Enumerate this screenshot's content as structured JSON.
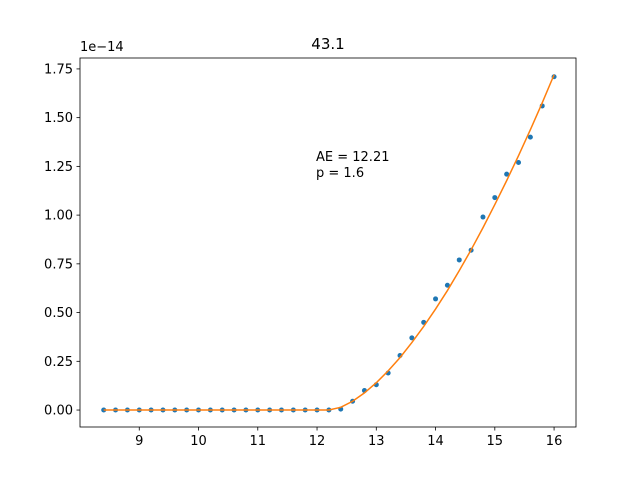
{
  "chart_data": {
    "type": "line",
    "title": "43.1",
    "y_offset_text": "1e−14",
    "annotations": [
      "AE = 12.21",
      "p = 1.6"
    ],
    "x": [
      8.4,
      8.6,
      8.8,
      9.0,
      9.2,
      9.4,
      9.6,
      9.8,
      10.0,
      10.2,
      10.4,
      10.6,
      10.8,
      11.0,
      11.2,
      11.4,
      11.6,
      11.8,
      12.0,
      12.2,
      12.4,
      12.6,
      12.8,
      13.0,
      13.2,
      13.4,
      13.6,
      13.8,
      14.0,
      14.2,
      14.4,
      14.6,
      14.8,
      15.0,
      15.2,
      15.4,
      15.6,
      15.8,
      16.0
    ],
    "series": [
      {
        "type": "scatter",
        "color": "#1f77b4",
        "values": [
          0,
          0,
          0,
          0,
          0,
          0,
          0,
          0,
          0,
          0,
          0,
          0,
          0,
          0,
          0,
          0,
          0,
          0,
          0,
          0,
          0.005,
          0.045,
          0.1,
          0.13,
          0.19,
          0.28,
          0.37,
          0.45,
          0.57,
          0.64,
          0.77,
          0.82,
          0.99,
          1.09,
          1.21,
          1.27,
          1.4,
          1.56,
          1.71
        ]
      },
      {
        "type": "line",
        "color": "#ff7f0e",
        "values": [
          0,
          0,
          0,
          0,
          0,
          0,
          0,
          0,
          0,
          0,
          0,
          0,
          0,
          0,
          0,
          0,
          0,
          0,
          0,
          0,
          0.014,
          0.045,
          0.088,
          0.14,
          0.201,
          0.269,
          0.346,
          0.429,
          0.518,
          0.613,
          0.715,
          0.822,
          0.935,
          1.054,
          1.177,
          1.305,
          1.438,
          1.576,
          1.72
        ]
      }
    ],
    "xlim": [
      8.0,
      16.37
    ],
    "xticks": [
      9,
      10,
      11,
      12,
      13,
      14,
      15,
      16
    ],
    "ylim": [
      -0.087,
      1.806
    ],
    "yticks": [
      {
        "value": 0,
        "label": "0.00"
      },
      {
        "value": 0.25,
        "label": "0.25"
      },
      {
        "value": 0.5,
        "label": "0.50"
      },
      {
        "value": 0.75,
        "label": "0.75"
      },
      {
        "value": 1,
        "label": "1.00"
      },
      {
        "value": 1.25,
        "label": "1.25"
      },
      {
        "value": 1.5,
        "label": "1.50"
      },
      {
        "value": 1.75,
        "label": "1.75"
      }
    ],
    "grid": false
  }
}
